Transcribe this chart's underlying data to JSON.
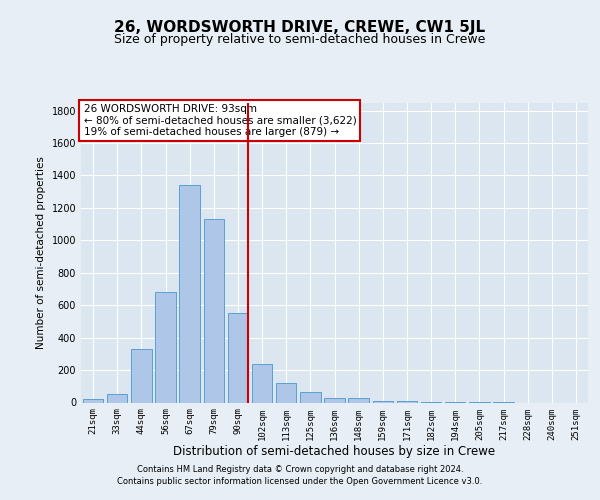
{
  "title": "26, WORDSWORTH DRIVE, CREWE, CW1 5JL",
  "subtitle": "Size of property relative to semi-detached houses in Crewe",
  "xlabel": "Distribution of semi-detached houses by size in Crewe",
  "ylabel": "Number of semi-detached properties",
  "categories": [
    "21sqm",
    "33sqm",
    "44sqm",
    "56sqm",
    "67sqm",
    "79sqm",
    "90sqm",
    "102sqm",
    "113sqm",
    "125sqm",
    "136sqm",
    "148sqm",
    "159sqm",
    "171sqm",
    "182sqm",
    "194sqm",
    "205sqm",
    "217sqm",
    "228sqm",
    "240sqm",
    "251sqm"
  ],
  "values": [
    20,
    50,
    330,
    680,
    1340,
    1130,
    550,
    240,
    120,
    65,
    30,
    25,
    12,
    8,
    4,
    2,
    1,
    1,
    0,
    0,
    0
  ],
  "bar_color": "#aec6e8",
  "bar_edgecolor": "#5a9fd4",
  "vline_color": "#cc0000",
  "annotation_text": "26 WORDSWORTH DRIVE: 93sqm\n← 80% of semi-detached houses are smaller (3,622)\n19% of semi-detached houses are larger (879) →",
  "annotation_box_edgecolor": "#cc0000",
  "ylim": [
    0,
    1850
  ],
  "yticks": [
    0,
    200,
    400,
    600,
    800,
    1000,
    1200,
    1400,
    1600,
    1800
  ],
  "footer1": "Contains HM Land Registry data © Crown copyright and database right 2024.",
  "footer2": "Contains public sector information licensed under the Open Government Licence v3.0.",
  "bg_color": "#e8eef5",
  "plot_bg_color": "#dce6f0",
  "grid_color": "#ffffff",
  "title_fontsize": 11,
  "subtitle_fontsize": 9
}
